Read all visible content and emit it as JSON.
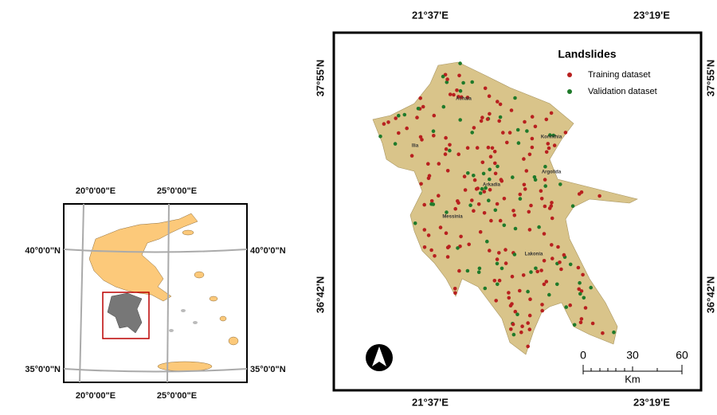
{
  "inset_map": {
    "lon_labels": [
      "20°0'00\"E",
      "25°0'00\"E"
    ],
    "lat_labels": [
      "40°0'0\"N",
      "35°0'0\"N"
    ]
  },
  "main_map": {
    "lon_labels": [
      "21°37'E",
      "23°19'E"
    ],
    "lat_labels": [
      "37°55'N",
      "36°42'N"
    ],
    "legend": {
      "title": "Landslides",
      "items": [
        "Training dataset",
        "Validation dataset"
      ]
    },
    "region_labels": [
      "Achaia",
      "Korinthia",
      "Ilia",
      "Argolida",
      "Arkadia",
      "Messinia",
      "Lakonia"
    ],
    "scale": {
      "ticks": [
        "0",
        "30",
        "60"
      ],
      "unit": "Km"
    }
  }
}
